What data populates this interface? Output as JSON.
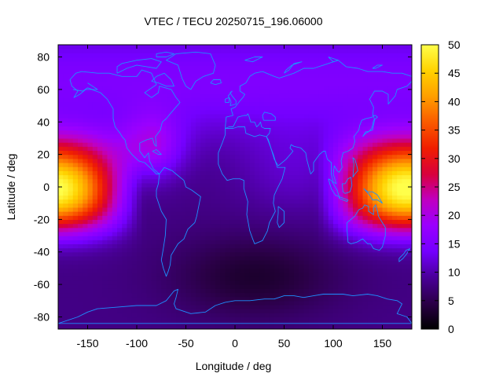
{
  "chart_data": {
    "type": "heatmap",
    "title": "VTEC / TECU 20250715_196.06000",
    "xlabel": "Longitude / deg",
    "ylabel": "Latitude / deg",
    "xlim": [
      -180,
      180
    ],
    "ylim": [
      -87.5,
      87.5
    ],
    "x_ticks": [
      -150,
      -100,
      -50,
      0,
      50,
      100,
      150
    ],
    "y_ticks": [
      -80,
      -60,
      -40,
      -20,
      0,
      20,
      40,
      60,
      80
    ],
    "colorbar": {
      "range": [
        0,
        50
      ],
      "ticks": [
        0,
        5,
        10,
        15,
        20,
        25,
        30,
        35,
        40,
        45,
        50
      ],
      "palette": [
        "#000000",
        "#2b0047",
        "#4a0099",
        "#7400ff",
        "#9a00ff",
        "#c000c0",
        "#d8003c",
        "#f01e00",
        "#fa5a00",
        "#ff9e00",
        "#ffd200",
        "#ffff4a"
      ]
    },
    "grid_resolution": {
      "dlon": 5,
      "dlat": 2.5
    },
    "features": {
      "equatorial_anomaly_max": [
        {
          "lon": -175,
          "lat": 0,
          "vtec": 48
        },
        {
          "lon": 175,
          "lat": 0,
          "vtec": 46
        },
        {
          "lon": -150,
          "lat": 15,
          "vtec": 42
        }
      ],
      "background_midlat": 13,
      "southern_minimum": {
        "lon": 20,
        "lat": -62,
        "vtec": 2
      }
    },
    "overlay": "coastlines",
    "coastline_color": "#1e90ff"
  }
}
